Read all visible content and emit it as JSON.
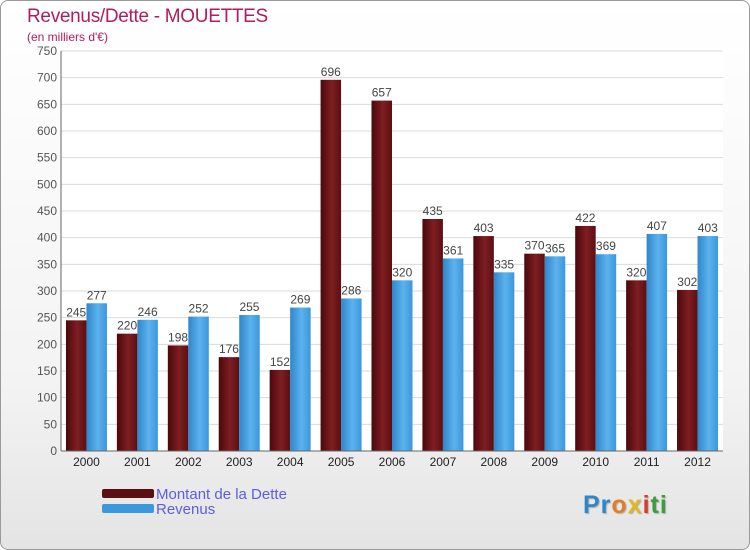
{
  "chart_data": {
    "type": "bar",
    "title": "Revenus/Dette - MOUETTES",
    "subtitle": "(en milliers d'€)",
    "xlabel": "",
    "ylabel": "",
    "ylim": [
      0,
      750
    ],
    "y_ticks": [
      0,
      50,
      100,
      150,
      200,
      250,
      300,
      350,
      400,
      450,
      500,
      550,
      600,
      650,
      700,
      750
    ],
    "grid": true,
    "categories": [
      "2000",
      "2001",
      "2002",
      "2003",
      "2004",
      "2005",
      "2006",
      "2007",
      "2008",
      "2009",
      "2010",
      "2011",
      "2012"
    ],
    "series": [
      {
        "name": "Montant de la Dette",
        "color": "#5c0f12",
        "values": [
          245,
          220,
          198,
          176,
          152,
          696,
          657,
          435,
          403,
          370,
          422,
          320,
          302
        ]
      },
      {
        "name": "Revenus",
        "color": "#3b98da",
        "values": [
          277,
          246,
          252,
          255,
          269,
          286,
          320,
          361,
          335,
          365,
          369,
          407,
          403
        ]
      }
    ],
    "legend_position": "bottom-left"
  },
  "logo": {
    "letters": [
      "Pr",
      "o",
      "x",
      "i",
      "ti"
    ],
    "alt": "Proxiti"
  }
}
